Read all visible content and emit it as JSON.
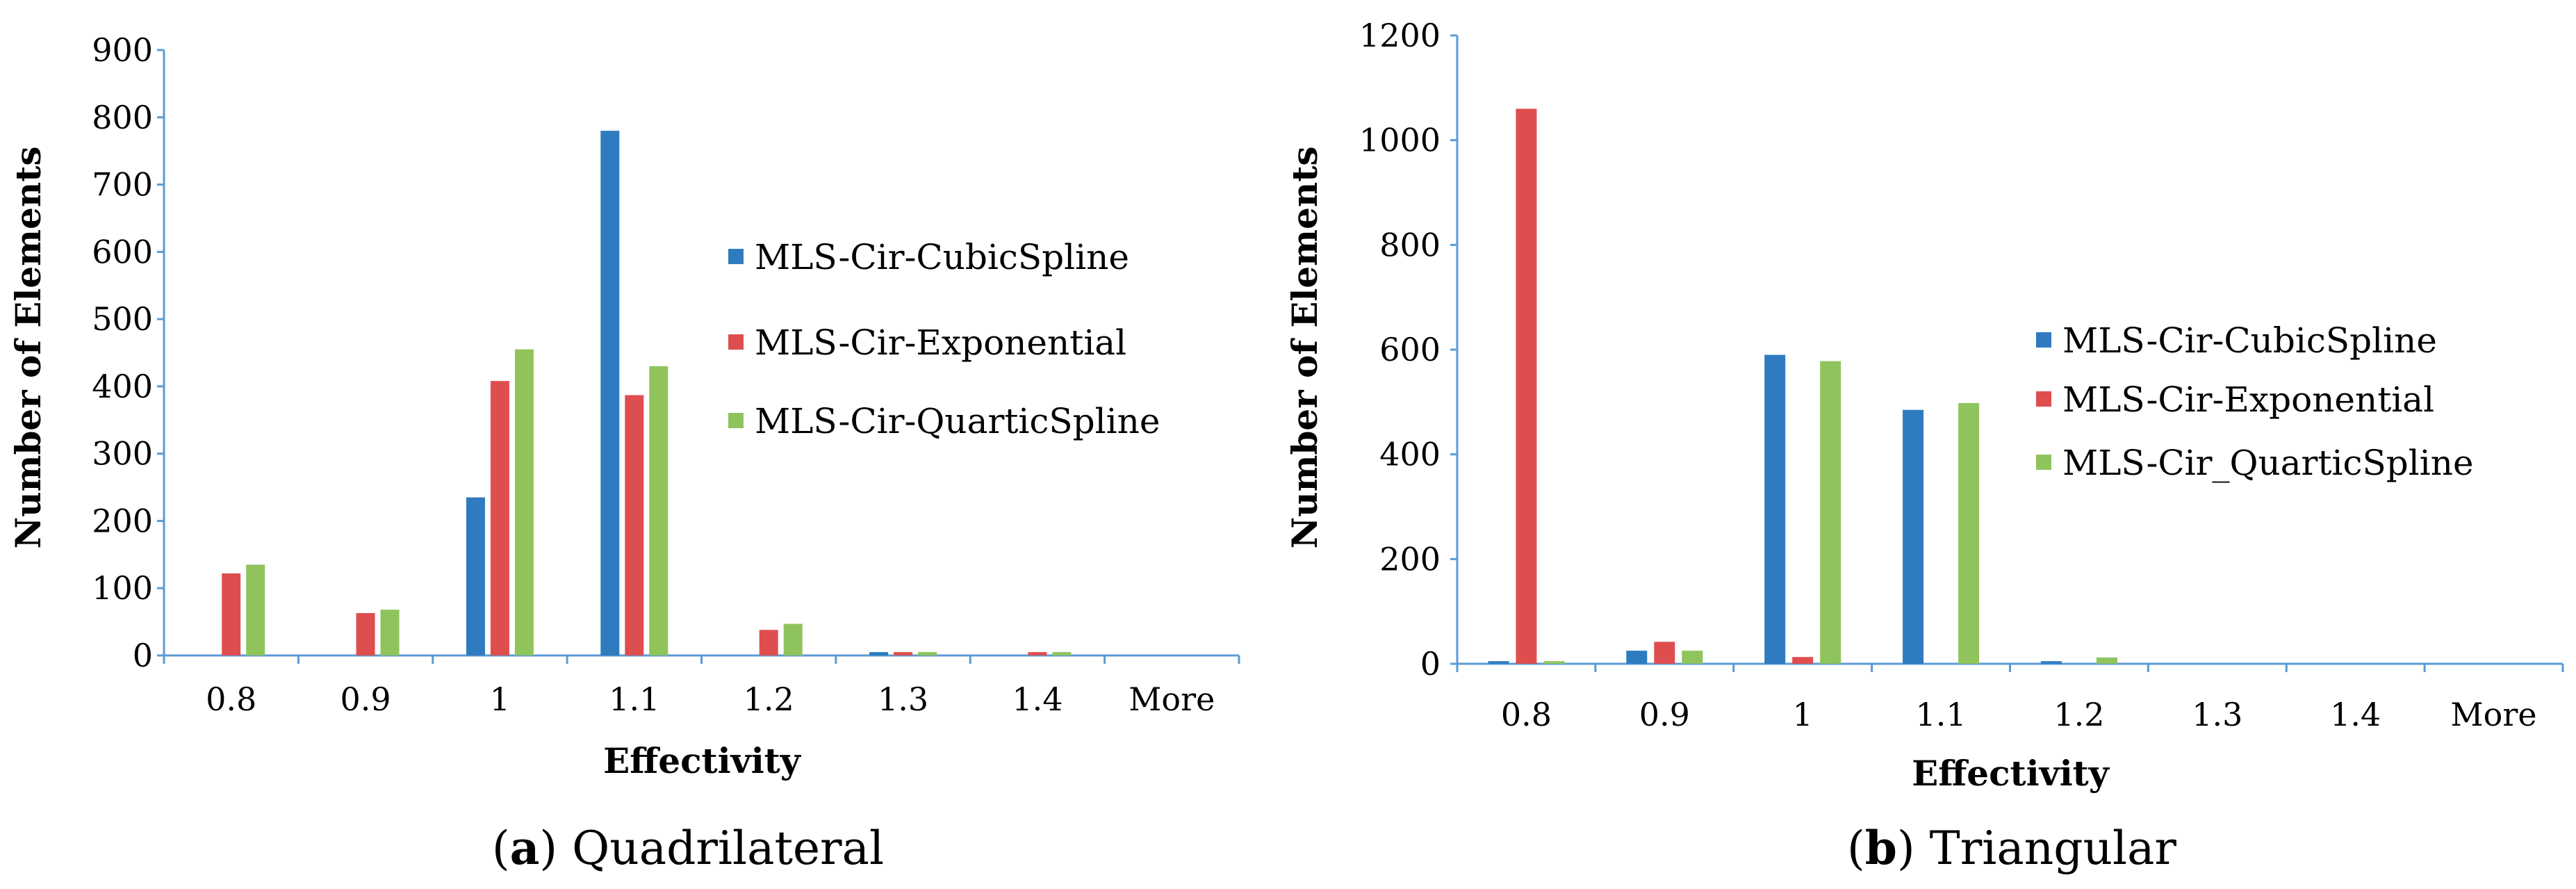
{
  "colors": {
    "series": [
      "#2f7bbf",
      "#df4e4e",
      "#8fc45c"
    ],
    "axis": "#5b9bd5"
  },
  "charts": [
    {
      "caption": {
        "letter": "a",
        "rest": ") Quadrilateral",
        "open": "("
      },
      "xlabel": "Effectivity",
      "ylabel": "Number of Elements",
      "yticks": [
        "0",
        "100",
        "200",
        "300",
        "400",
        "500",
        "600",
        "700",
        "800",
        "900"
      ],
      "legend": [
        "MLS-Cir-CubicSpline",
        "MLS-Cir-Exponential",
        "MLS-Cir-QuarticSpline"
      ]
    },
    {
      "caption": {
        "letter": "b",
        "rest": ") Triangular",
        "open": "("
      },
      "xlabel": "Effectivity",
      "ylabel": "Number of Elements",
      "yticks": [
        "0",
        "200",
        "400",
        "600",
        "800",
        "1000",
        "1200"
      ],
      "legend": [
        "MLS-Cir-CubicSpline",
        "MLS-Cir-Exponential",
        "MLS-Cir_QuarticSpline"
      ]
    }
  ],
  "chart_data": [
    {
      "type": "bar",
      "title": "Quadrilateral",
      "xlabel": "Effectivity",
      "ylabel": "Number of Elements",
      "ylim": [
        0,
        900
      ],
      "categories": [
        "0.8",
        "0.9",
        "1",
        "1.1",
        "1.2",
        "1.3",
        "1.4",
        "More"
      ],
      "series": [
        {
          "name": "MLS-Cir-CubicSpline",
          "values": [
            0,
            0,
            235,
            780,
            0,
            5,
            0,
            0
          ]
        },
        {
          "name": "MLS-Cir-Exponential",
          "values": [
            122,
            63,
            408,
            387,
            38,
            5,
            5,
            0
          ]
        },
        {
          "name": "MLS-Cir-QuarticSpline",
          "values": [
            135,
            68,
            455,
            430,
            47,
            5,
            5,
            0
          ]
        }
      ],
      "legend_position": "right"
    },
    {
      "type": "bar",
      "title": "Triangular",
      "xlabel": "Effectivity",
      "ylabel": "Number of Elements",
      "ylim": [
        0,
        1200
      ],
      "categories": [
        "0.8",
        "0.9",
        "1",
        "1.1",
        "1.2",
        "1.3",
        "1.4",
        "More"
      ],
      "series": [
        {
          "name": "MLS-Cir-CubicSpline",
          "values": [
            5,
            25,
            590,
            485,
            5,
            0,
            0,
            0
          ]
        },
        {
          "name": "MLS-Cir-Exponential",
          "values": [
            1060,
            42,
            13,
            0,
            0,
            0,
            0,
            0
          ]
        },
        {
          "name": "MLS-Cir_QuarticSpline",
          "values": [
            5,
            25,
            578,
            498,
            12,
            0,
            0,
            0
          ]
        }
      ],
      "legend_position": "right"
    }
  ]
}
